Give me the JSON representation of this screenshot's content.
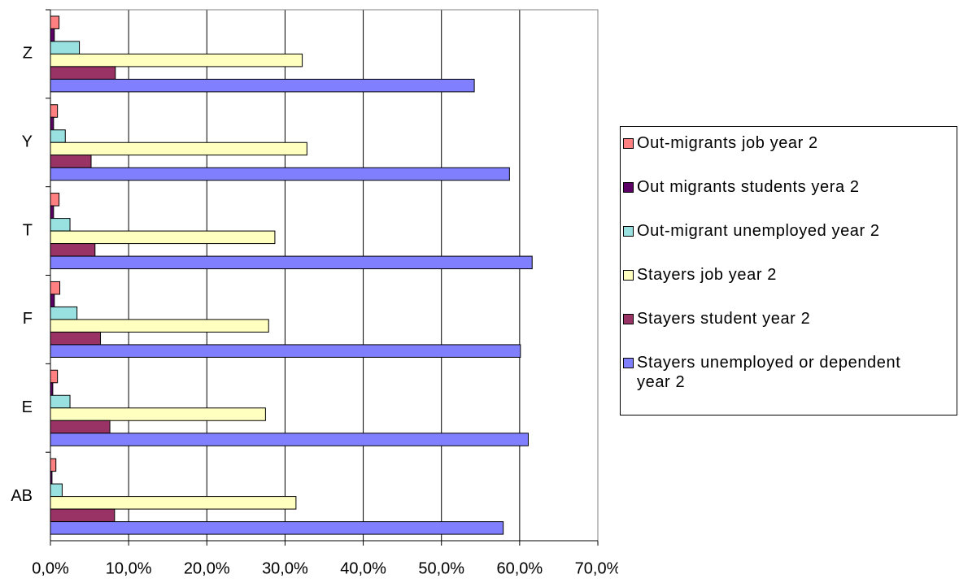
{
  "chart_data": {
    "type": "hbar",
    "categories": [
      "AB",
      "E",
      "F",
      "T",
      "Y",
      "Z"
    ],
    "series": [
      {
        "name": "Out-migrants job year 2",
        "color": "#ff8080",
        "values": [
          0.7,
          0.9,
          1.2,
          1.1,
          0.9,
          1.1
        ]
      },
      {
        "name": "Out migrants students yera 2",
        "color": "#5c0066",
        "values": [
          0.2,
          0.3,
          0.5,
          0.4,
          0.4,
          0.5
        ]
      },
      {
        "name": "Out-migrant unemployed year 2",
        "color": "#99e0e0",
        "values": [
          1.5,
          2.5,
          3.4,
          2.5,
          1.9,
          3.7
        ]
      },
      {
        "name": "Stayers job year 2",
        "color": "#ffffc0",
        "values": [
          31.4,
          27.5,
          27.9,
          28.7,
          32.8,
          32.2
        ]
      },
      {
        "name": "Stayers student year 2",
        "color": "#993366",
        "values": [
          8.2,
          7.6,
          6.4,
          5.7,
          5.2,
          8.3
        ]
      },
      {
        "name": "Stayers unemployed or dependent year 2",
        "color": "#8080ff",
        "values": [
          57.9,
          61.1,
          60.1,
          61.6,
          58.7,
          54.2
        ]
      }
    ],
    "xlim": [
      0,
      70
    ],
    "xticks": [
      {
        "value": 0,
        "label": "0,0%"
      },
      {
        "value": 10,
        "label": "10,0%"
      },
      {
        "value": 20,
        "label": "20,0%"
      },
      {
        "value": 30,
        "label": "30,0%"
      },
      {
        "value": 40,
        "label": "40,0%"
      },
      {
        "value": 50,
        "label": "50,0%"
      },
      {
        "value": 60,
        "label": "60,0%"
      },
      {
        "value": 70,
        "label": "70,0%"
      }
    ],
    "grid": true
  }
}
